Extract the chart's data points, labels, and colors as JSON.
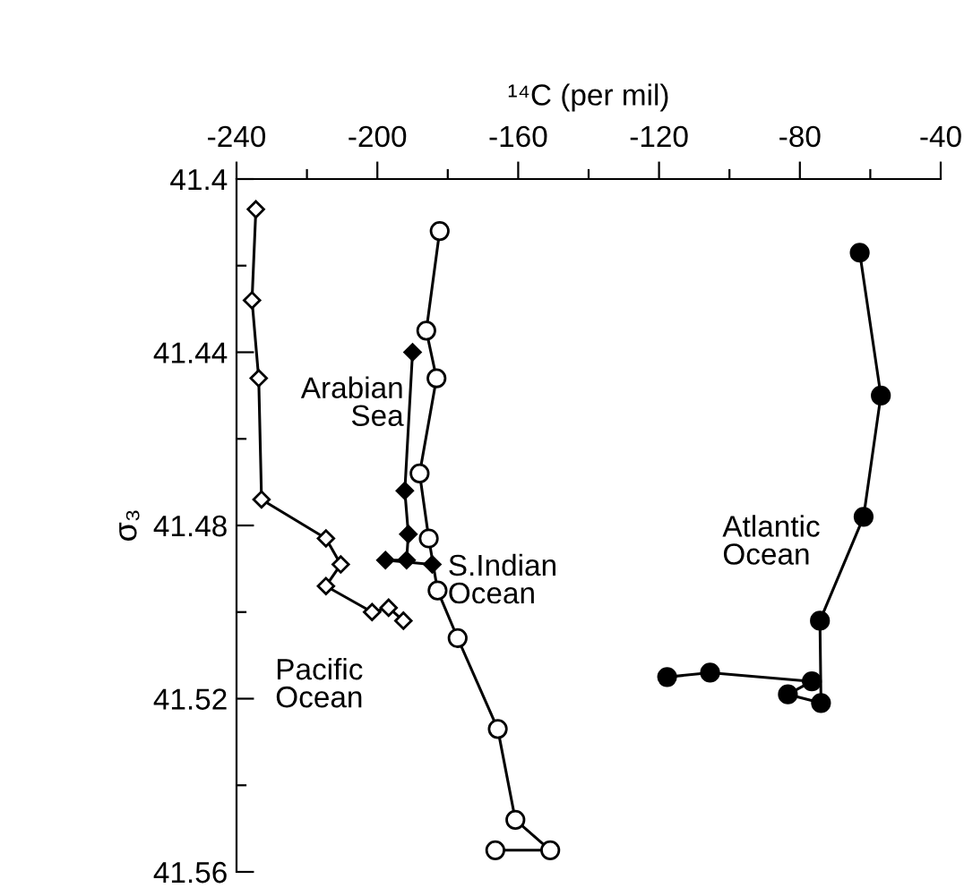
{
  "chart_data": {
    "type": "line",
    "xlabel": "¹⁴C (per mil)",
    "ylabel": "σ₃",
    "xlim": [
      -240,
      -40
    ],
    "ylim": [
      41.56,
      41.4
    ],
    "xticks": [
      -240,
      {
        "value": -220,
        "label": null
      },
      -200,
      {
        "value": -180,
        "label": null
      },
      -160,
      {
        "value": -140,
        "label": null
      },
      -120,
      {
        "value": -100,
        "label": null
      },
      -80,
      {
        "value": -60,
        "label": null
      },
      -40
    ],
    "yticks": [
      41.4,
      {
        "value": 41.42,
        "label": null
      },
      41.44,
      {
        "value": 41.46,
        "label": null
      },
      41.48,
      {
        "value": 41.5,
        "label": null
      },
      41.52,
      {
        "value": 41.54,
        "label": null
      },
      41.56
    ],
    "grid": false,
    "legend": false,
    "series": [
      {
        "name": "Pacific Ocean",
        "color": "#000000",
        "marker": "diamond",
        "x": [
          -234.5,
          -235.6,
          -233.7,
          -232.9,
          -214.6,
          -210.4,
          -214.6,
          -201.5,
          -196.8,
          -192.6
        ],
        "values": [
          41.407,
          41.428,
          41.446,
          41.474,
          41.483,
          41.489,
          41.494,
          41.5,
          41.499,
          41.502
        ]
      },
      {
        "name": "Arabian Sea",
        "color": "#000000",
        "marker": "diamond",
        "x": [
          -190.0,
          -192.2,
          -191.2,
          -191.7,
          -197.7,
          -184.4
        ],
        "values": [
          41.44,
          41.472,
          41.482,
          41.488,
          41.488,
          41.489
        ]
      },
      {
        "name": "S.Indian Ocean",
        "color": "#000000",
        "marker": "circle",
        "x": [
          -182.3,
          -186.1,
          -183.2,
          -188.0,
          -185.4,
          -182.9,
          -177.2,
          -165.8,
          -160.8,
          -150.9,
          -166.5
        ],
        "values": [
          41.412,
          41.435,
          41.446,
          41.468,
          41.483,
          41.495,
          41.506,
          41.527,
          41.548,
          41.555,
          41.555
        ]
      },
      {
        "name": "Atlantic Ocean",
        "color": "#000000",
        "marker": "circle",
        "x": [
          -63.0,
          -57.0,
          -61.9,
          -74.3,
          -74.0,
          -83.4,
          -76.6,
          -105.5,
          -117.7
        ],
        "values": [
          41.417,
          41.45,
          41.478,
          41.502,
          41.521,
          41.519,
          41.516,
          41.514,
          41.515
        ]
      }
    ]
  }
}
